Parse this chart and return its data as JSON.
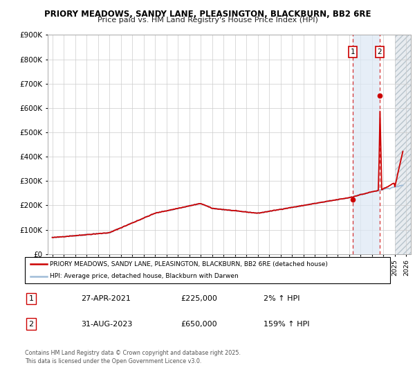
{
  "title": "PRIORY MEADOWS, SANDY LANE, PLEASINGTON, BLACKBURN, BB2 6RE",
  "subtitle": "Price paid vs. HM Land Registry's House Price Index (HPI)",
  "ylim": [
    0,
    900000
  ],
  "yticks": [
    0,
    100000,
    200000,
    300000,
    400000,
    500000,
    600000,
    700000,
    800000,
    900000
  ],
  "ytick_labels": [
    "£0",
    "£100K",
    "£200K",
    "£300K",
    "£400K",
    "£500K",
    "£600K",
    "£700K",
    "£800K",
    "£900K"
  ],
  "xlim_start": 1994.6,
  "xlim_end": 2026.4,
  "hpi_color": "#a0bcd8",
  "property_color": "#cc0000",
  "marker1_date": 2021.32,
  "marker1_value": 225000,
  "marker1_label": "1",
  "marker2_date": 2023.66,
  "marker2_value": 650000,
  "marker2_label": "2",
  "legend_line1": "PRIORY MEADOWS, SANDY LANE, PLEASINGTON, BLACKBURN, BB2 6RE (detached house)",
  "legend_line2": "HPI: Average price, detached house, Blackburn with Darwen",
  "table_row1": [
    "1",
    "27-APR-2021",
    "£225,000",
    "2% ↑ HPI"
  ],
  "table_row2": [
    "2",
    "31-AUG-2023",
    "£650,000",
    "159% ↑ HPI"
  ],
  "footer": "Contains HM Land Registry data © Crown copyright and database right 2025.\nThis data is licensed under the Open Government Licence v3.0.",
  "shaded_region_color": "#dce8f5",
  "future_region_start": 2025.0,
  "future_hatch_color": "#c8d4de"
}
